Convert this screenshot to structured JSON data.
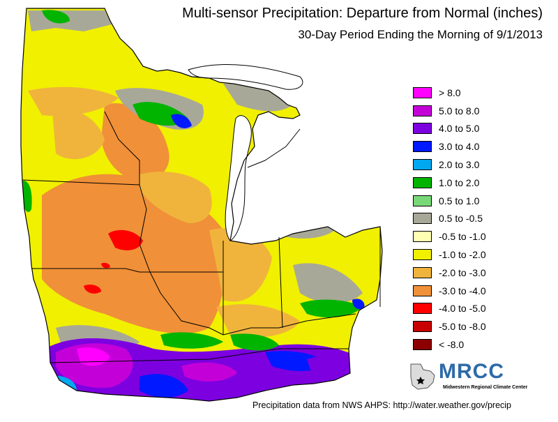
{
  "title": "Multi-sensor Precipitation: Departure from Normal (inches)",
  "subtitle": "30-Day Period Ending the Morning of 9/1/2013",
  "legend": [
    {
      "label": "> 8.0",
      "color": "#ff00ff"
    },
    {
      "label": "5.0 to 8.0",
      "color": "#c400d8"
    },
    {
      "label": "4.0 to 5.0",
      "color": "#7c00e0"
    },
    {
      "label": "3.0 to 4.0",
      "color": "#0019ff"
    },
    {
      "label": "2.0 to 3.0",
      "color": "#00a8f0"
    },
    {
      "label": "1.0 to 2.0",
      "color": "#00b400"
    },
    {
      "label": "0.5 to 1.0",
      "color": "#78d878"
    },
    {
      "label": "0.5 to -0.5",
      "color": "#a8a898"
    },
    {
      "label": "-0.5 to -1.0",
      "color": "#ffffb4"
    },
    {
      "label": "-1.0 to -2.0",
      "color": "#f0f000"
    },
    {
      "label": "-2.0 to -3.0",
      "color": "#f0b43c"
    },
    {
      "label": "-3.0 to -4.0",
      "color": "#f09038"
    },
    {
      "label": "-4.0 to -5.0",
      "color": "#ff0000"
    },
    {
      "label": "-5.0 to -8.0",
      "color": "#c80000"
    },
    {
      "label": "< -8.0",
      "color": "#8c0000"
    }
  ],
  "logo": {
    "text": "MRCC",
    "subtext": "Midwestern Regional Climate Center"
  },
  "credit": "Precipitation data from NWS AHPS:  http://water.weather.gov/precip",
  "colors": {
    "lake": "#ffffff",
    "border": "#000000",
    "logo_blue": "#2d6aa8"
  }
}
